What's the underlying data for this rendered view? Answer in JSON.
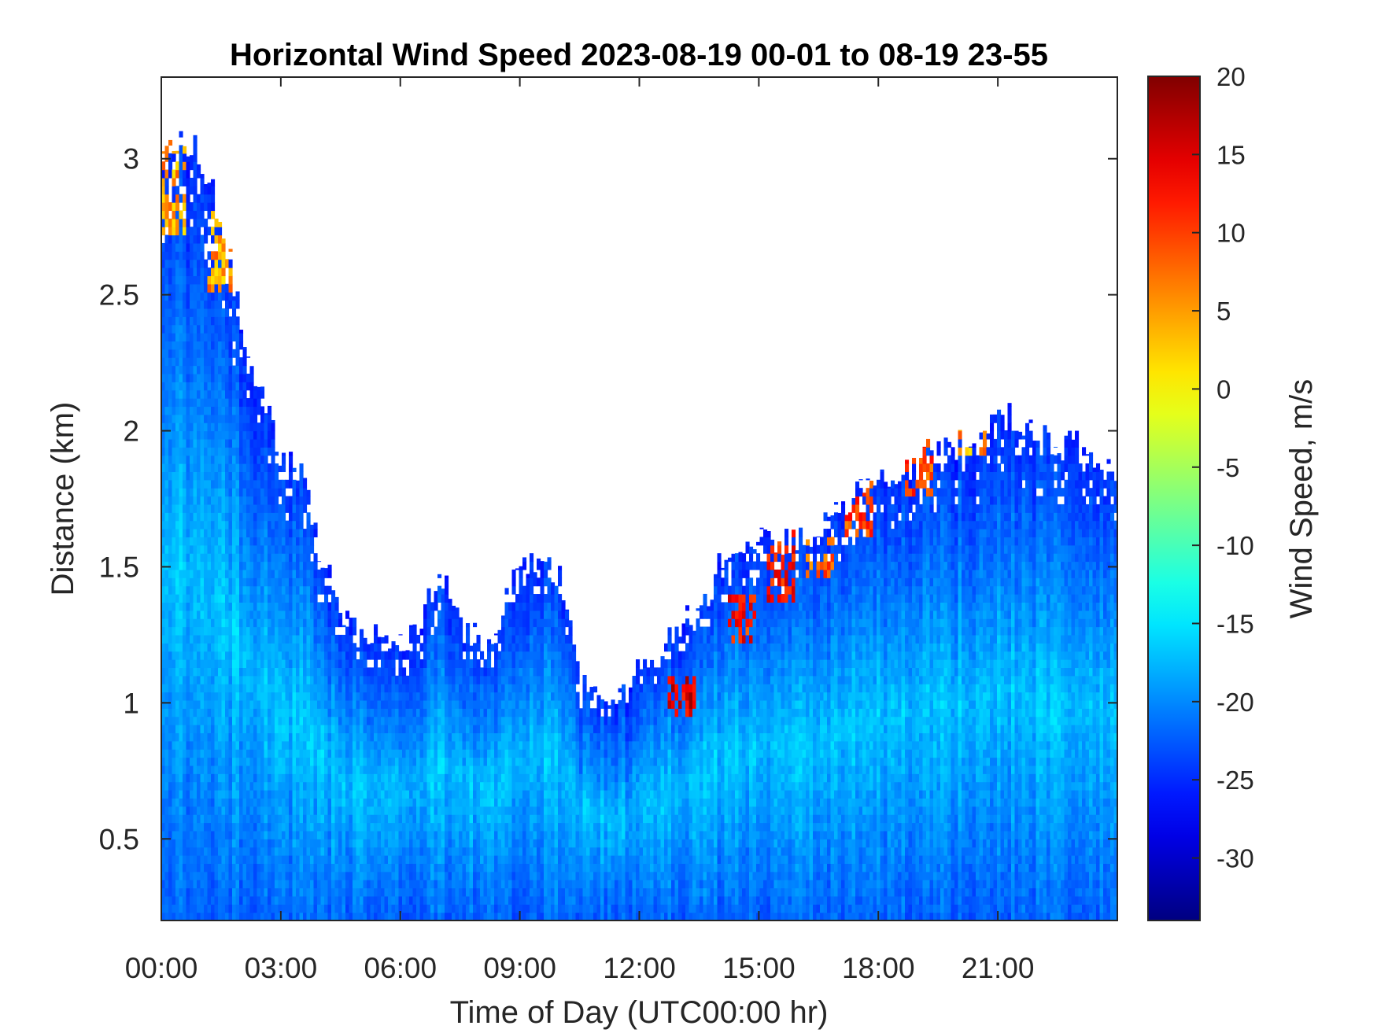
{
  "chart_data": {
    "type": "heatmap",
    "title": "Horizontal Wind Speed 2023-08-19 00-01 to 08-19 23-55",
    "xlabel": "Time of Day (UTC00:00 hr)",
    "ylabel": "Distance (km)",
    "colorbar_label": "Wind Speed, m/s",
    "xlim": [
      0,
      24
    ],
    "ylim": [
      0.2,
      3.3
    ],
    "clim": [
      -34,
      20
    ],
    "colormap": "jet",
    "x_ticks": [
      0,
      3,
      6,
      9,
      12,
      15,
      18,
      21
    ],
    "x_tick_labels": [
      "00:00",
      "03:00",
      "06:00",
      "09:00",
      "12:00",
      "15:00",
      "18:00",
      "21:00"
    ],
    "y_ticks": [
      0.5,
      1,
      1.5,
      2,
      2.5,
      3
    ],
    "y_tick_labels": [
      "0.5",
      "1",
      "1.5",
      "2",
      "2.5",
      "3"
    ],
    "colorbar_ticks": [
      20,
      15,
      10,
      5,
      0,
      -5,
      -10,
      -15,
      -20,
      -25,
      -30
    ],
    "colorbar_tick_labels": [
      "20",
      "15",
      "10",
      "5",
      "0",
      "-5",
      "-10",
      "-15",
      "-20",
      "-25",
      "-30"
    ],
    "grid": false,
    "data_top_km": {
      "time_hr": [
        0,
        0.5,
        1,
        1.5,
        2,
        2.5,
        3,
        3.5,
        4,
        4.5,
        5,
        5.5,
        6,
        6.5,
        7,
        7.5,
        8,
        8.5,
        9,
        9.5,
        10,
        10.5,
        11,
        11.5,
        12,
        12.5,
        13,
        13.5,
        14,
        14.5,
        15,
        15.5,
        16,
        16.5,
        17,
        17.5,
        18,
        18.5,
        19,
        19.5,
        20,
        20.5,
        21,
        21.5,
        22,
        22.5,
        23,
        23.5,
        24
      ],
      "top_km": [
        3.0,
        3.1,
        3.0,
        2.8,
        2.4,
        2.15,
        1.9,
        1.85,
        1.55,
        1.35,
        1.25,
        1.25,
        1.2,
        1.3,
        1.45,
        1.35,
        1.2,
        1.3,
        1.55,
        1.5,
        1.5,
        1.05,
        1.05,
        1.0,
        1.15,
        1.2,
        1.3,
        1.3,
        1.5,
        1.55,
        1.6,
        1.6,
        1.6,
        1.65,
        1.7,
        1.8,
        1.8,
        1.8,
        1.9,
        1.95,
        1.95,
        1.95,
        2.05,
        2.05,
        2.0,
        1.95,
        1.95,
        1.9,
        1.85
      ]
    },
    "speed_profile_ms": {
      "near_ground": -22,
      "mid_layer": -17,
      "near_top": -25
    },
    "high_speed_patches_ms": [
      {
        "time_hr": 0.2,
        "range_km": [
          2.7,
          3.1
        ],
        "speed": 5
      },
      {
        "time_hr": 1.5,
        "range_km": [
          2.5,
          2.8
        ],
        "speed": 5
      },
      {
        "time_hr": 13.0,
        "range_km": [
          0.95,
          1.1
        ],
        "speed": 15
      },
      {
        "time_hr": 14.5,
        "range_km": [
          1.2,
          1.4
        ],
        "speed": 12
      },
      {
        "time_hr": 15.5,
        "range_km": [
          1.35,
          1.65
        ],
        "speed": 12
      },
      {
        "time_hr": 16.5,
        "range_km": [
          1.45,
          1.6
        ],
        "speed": 8
      },
      {
        "time_hr": 17.5,
        "range_km": [
          1.6,
          1.8
        ],
        "speed": 10
      },
      {
        "time_hr": 19.0,
        "range_km": [
          1.75,
          1.95
        ],
        "speed": 10
      },
      {
        "time_hr": 20.3,
        "range_km": [
          1.9,
          2.1
        ],
        "speed": 5
      }
    ]
  }
}
